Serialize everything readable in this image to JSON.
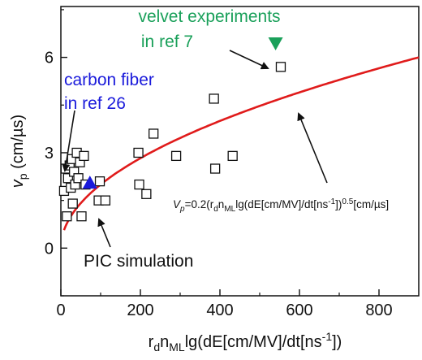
{
  "chart_data": {
    "type": "scatter",
    "xlabel": {
      "base": "r",
      "sub1": "d",
      "mid1": "n",
      "sub2": "ML",
      "rest": "lg(dE[cm/MV]/dt[ns",
      "sup": "-1",
      "tail": "])"
    },
    "ylabel": {
      "main": "v",
      "sub": "p",
      "unit": " (cm/µs)"
    },
    "xlim": [
      0,
      900
    ],
    "ylim": [
      -1.5,
      7.6
    ],
    "x_ticks": [
      0,
      200,
      400,
      600,
      800
    ],
    "x_tick_labels": [
      "0",
      "200",
      "400",
      "600",
      "800"
    ],
    "y_ticks": [
      0,
      3,
      6
    ],
    "y_tick_labels": [
      "0",
      "3",
      "6"
    ],
    "grid": false,
    "series": [
      {
        "name": "PIC simulation",
        "marker": "open-square",
        "color": "#111111",
        "points": [
          {
            "x": 8,
            "y": 1.8
          },
          {
            "x": 12,
            "y": 2.5
          },
          {
            "x": 15,
            "y": 1.0
          },
          {
            "x": 18,
            "y": 2.2
          },
          {
            "x": 22,
            "y": 2.6
          },
          {
            "x": 25,
            "y": 1.9
          },
          {
            "x": 28,
            "y": 2.8
          },
          {
            "x": 30,
            "y": 1.4
          },
          {
            "x": 33,
            "y": 2.4
          },
          {
            "x": 36,
            "y": 2.0
          },
          {
            "x": 40,
            "y": 3.0
          },
          {
            "x": 44,
            "y": 2.2
          },
          {
            "x": 48,
            "y": 2.7
          },
          {
            "x": 52,
            "y": 1.0
          },
          {
            "x": 58,
            "y": 2.9
          },
          {
            "x": 62,
            "y": 2.0
          },
          {
            "x": 95,
            "y": 1.5
          },
          {
            "x": 98,
            "y": 2.1
          },
          {
            "x": 112,
            "y": 1.5
          },
          {
            "x": 195,
            "y": 3.0
          },
          {
            "x": 197,
            "y": 2.0
          },
          {
            "x": 215,
            "y": 1.7
          },
          {
            "x": 233,
            "y": 3.6
          },
          {
            "x": 290,
            "y": 2.9
          },
          {
            "x": 385,
            "y": 4.7
          },
          {
            "x": 388,
            "y": 2.5
          },
          {
            "x": 432,
            "y": 2.9
          },
          {
            "x": 553,
            "y": 5.7
          }
        ]
      },
      {
        "name": "carbon fiber in ref 26",
        "marker": "filled-triangle-up",
        "color": "#1a1adb",
        "points": [
          {
            "x": 73,
            "y": 2.05
          }
        ]
      },
      {
        "name": "velvet experiments in ref 7",
        "marker": "filled-triangle-down",
        "color": "#1aa05a",
        "points": [
          {
            "x": 540,
            "y": 6.45
          }
        ]
      }
    ],
    "fit_curve": {
      "color": "#e01b1b",
      "coefficient": 0.2,
      "exponent": 0.5,
      "x_range": [
        8,
        900
      ],
      "label": {
        "v": "V",
        "p": "p",
        "eq": "=0.2(r",
        "d": "d",
        "n": "n",
        "ml": "ML",
        "lg": "lg(dE[cm/MV]/dt[ns",
        "inv": "-1",
        "close": "])",
        "pow": "0.5",
        "unit": "[cm/µs]"
      }
    },
    "annotations": {
      "velvet_line1": "velvet experiments",
      "velvet_line2": "in ref 7",
      "carbon_line1": "carbon fiber",
      "carbon_line2": "in ref 26",
      "pic": "PIC simulation"
    },
    "colors": {
      "axis": "#111111",
      "velvet": "#1aa05a",
      "carbon": "#1a1adb",
      "curve": "#e01b1b"
    }
  }
}
